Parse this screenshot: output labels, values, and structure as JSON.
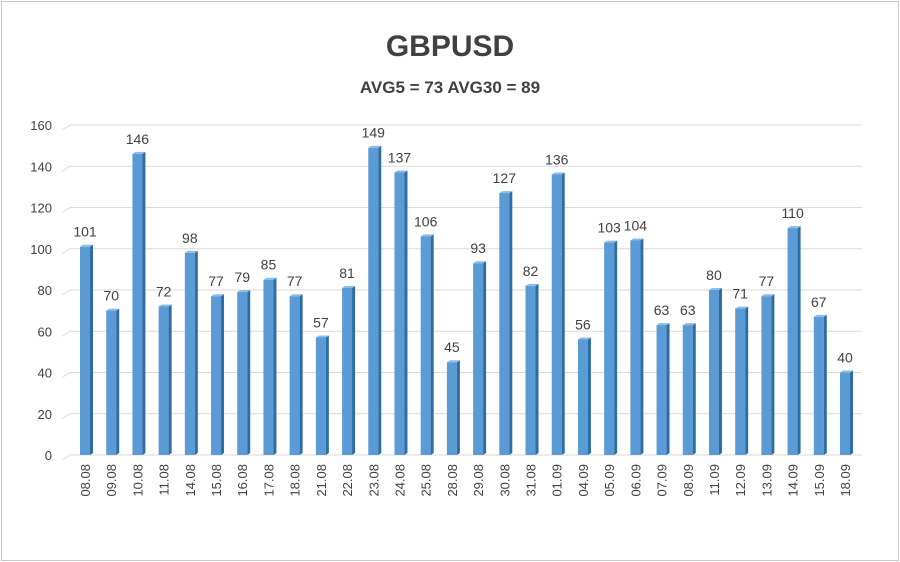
{
  "chart_data": {
    "type": "bar",
    "title": "GBPUSD",
    "subtitle": "AVG5 = 73 AVG30 = 89",
    "xlabel": "",
    "ylabel": "",
    "ylim": [
      0,
      160
    ],
    "yticks": [
      0,
      20,
      40,
      60,
      80,
      100,
      120,
      140,
      160
    ],
    "grid": true,
    "categories": [
      "08.08",
      "09.08",
      "10.08",
      "11.08",
      "14.08",
      "15.08",
      "16.08",
      "17.08",
      "18.08",
      "21.08",
      "22.08",
      "23.08",
      "24.08",
      "25.08",
      "28.08",
      "29.08",
      "30.08",
      "31.08",
      "01.09",
      "04.09",
      "05.09",
      "06.09",
      "07.09",
      "08.09",
      "11.09",
      "12.09",
      "13.09",
      "14.09",
      "15.09",
      "18.09"
    ],
    "values": [
      101,
      70,
      146,
      72,
      98,
      77,
      79,
      85,
      77,
      57,
      81,
      149,
      137,
      106,
      45,
      93,
      127,
      82,
      136,
      56,
      103,
      104,
      63,
      63,
      80,
      71,
      77,
      110,
      67,
      40
    ],
    "colors": {
      "bar_front": "#5b9bd5",
      "bar_side": "#2e6da4",
      "bar_top": "#8dbbe6",
      "grid": "#d9d9d9"
    }
  }
}
